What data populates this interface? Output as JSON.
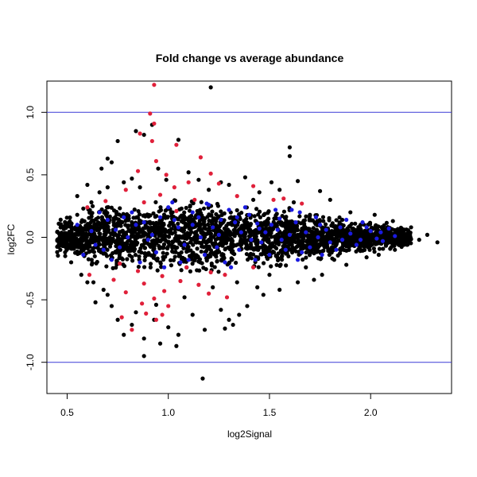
{
  "chart_data": {
    "type": "scatter",
    "title": "Fold change vs average abundance",
    "xlabel": "log2Signal",
    "ylabel": "log2FC",
    "xlim": [
      0.4,
      2.4
    ],
    "ylim": [
      -1.25,
      1.25
    ],
    "xticks": [
      0.5,
      1.0,
      1.5,
      2.0
    ],
    "xtick_labels": [
      "0.5",
      "1.0",
      "1.5",
      "2.0"
    ],
    "yticks": [
      -1.0,
      -0.5,
      0.0,
      0.5,
      1.0
    ],
    "ytick_labels": [
      "-1.0",
      "-0.5",
      "0.0",
      "0.5",
      "1.0"
    ],
    "grid": false,
    "hlines": [
      {
        "y": 1.0,
        "color": "#3a3ad6"
      },
      {
        "y": -1.0,
        "color": "#3a3ad6"
      }
    ],
    "series": [
      {
        "color": "#000000",
        "values": [
          [
            1.21,
            1.2
          ],
          [
            0.92,
            0.9
          ],
          [
            0.88,
            0.82
          ],
          [
            0.75,
            0.77
          ],
          [
            0.84,
            0.85
          ],
          [
            1.05,
            0.78
          ],
          [
            1.6,
            0.72
          ],
          [
            1.6,
            0.65
          ],
          [
            0.7,
            0.63
          ],
          [
            0.82,
            0.47
          ],
          [
            0.67,
            0.55
          ],
          [
            1.38,
            0.48
          ],
          [
            1.51,
            0.44
          ],
          [
            1.64,
            0.45
          ],
          [
            1.75,
            0.37
          ],
          [
            0.55,
            0.33
          ],
          [
            0.6,
            0.42
          ],
          [
            0.72,
            0.6
          ],
          [
            0.95,
            0.55
          ],
          [
            1.1,
            0.52
          ],
          [
            1.2,
            0.38
          ],
          [
            1.3,
            0.42
          ],
          [
            1.45,
            0.36
          ],
          [
            1.55,
            0.38
          ],
          [
            1.8,
            0.3
          ],
          [
            1.9,
            0.2
          ],
          [
            2.02,
            0.18
          ],
          [
            2.11,
            0.13
          ],
          [
            2.2,
            0.08
          ],
          [
            2.28,
            0.02
          ],
          [
            2.33,
            -0.04
          ],
          [
            2.18,
            -0.06
          ],
          [
            2.04,
            -0.14
          ],
          [
            1.88,
            -0.22
          ],
          [
            1.76,
            -0.3
          ],
          [
            1.72,
            -0.34
          ],
          [
            1.64,
            -0.36
          ],
          [
            1.55,
            -0.42
          ],
          [
            1.47,
            -0.46
          ],
          [
            1.39,
            -0.55
          ],
          [
            1.35,
            -0.62
          ],
          [
            1.32,
            -0.7
          ],
          [
            1.28,
            -0.73
          ],
          [
            1.18,
            -0.74
          ],
          [
            1.05,
            -0.78
          ],
          [
            1.0,
            -0.72
          ],
          [
            0.96,
            -0.85
          ],
          [
            1.04,
            -0.87
          ],
          [
            0.88,
            -0.95
          ],
          [
            0.88,
            -0.81
          ],
          [
            0.78,
            -0.78
          ],
          [
            0.75,
            -0.66
          ],
          [
            0.72,
            -0.55
          ],
          [
            0.68,
            -0.42
          ],
          [
            0.63,
            -0.36
          ],
          [
            0.57,
            -0.3
          ],
          [
            0.52,
            -0.2
          ],
          [
            0.49,
            -0.12
          ],
          [
            0.46,
            -0.05
          ],
          [
            0.46,
            0.03
          ],
          [
            0.48,
            0.08
          ],
          [
            0.51,
            0.12
          ],
          [
            0.55,
            0.18
          ],
          [
            0.58,
            0.23
          ],
          [
            0.62,
            0.28
          ],
          [
            0.66,
            0.36
          ],
          [
            0.7,
            0.4
          ],
          [
            0.78,
            0.44
          ],
          [
            0.86,
            0.4
          ],
          [
            0.99,
            0.46
          ],
          [
            1.15,
            0.46
          ],
          [
            1.26,
            0.44
          ],
          [
            1.42,
            0.3
          ],
          [
            1.62,
            0.28
          ],
          [
            1.7,
            0.18
          ],
          [
            1.86,
            0.14
          ],
          [
            1.95,
            0.1
          ],
          [
            2.06,
            0.06
          ],
          [
            2.14,
            0.02
          ],
          [
            2.24,
            -0.02
          ],
          [
            2.12,
            -0.1
          ],
          [
            1.98,
            -0.16
          ],
          [
            1.82,
            -0.18
          ],
          [
            1.68,
            -0.24
          ],
          [
            1.5,
            -0.3
          ],
          [
            1.34,
            -0.36
          ],
          [
            1.22,
            -0.4
          ],
          [
            1.08,
            -0.48
          ],
          [
            0.94,
            -0.54
          ],
          [
            0.84,
            -0.6
          ],
          [
            0.7,
            -0.46
          ],
          [
            0.6,
            -0.36
          ],
          [
            1.17,
            -1.13
          ],
          [
            0.64,
            -0.52
          ],
          [
            0.82,
            -0.7
          ],
          [
            1.12,
            -0.62
          ],
          [
            1.26,
            -0.58
          ],
          [
            1.44,
            -0.4
          ],
          [
            0.93,
            -0.66
          ],
          [
            1.3,
            -0.66
          ]
        ]
      },
      {
        "color": "#e0203a",
        "values": [
          [
            0.93,
            1.22
          ],
          [
            0.91,
            0.99
          ],
          [
            0.93,
            0.91
          ],
          [
            0.92,
            0.77
          ],
          [
            0.86,
            0.83
          ],
          [
            1.04,
            0.74
          ],
          [
            1.16,
            0.64
          ],
          [
            0.94,
            0.61
          ],
          [
            0.85,
            0.53
          ],
          [
            0.99,
            0.5
          ],
          [
            1.21,
            0.51
          ],
          [
            1.1,
            0.44
          ],
          [
            1.25,
            0.43
          ],
          [
            1.42,
            0.41
          ],
          [
            1.03,
            0.4
          ],
          [
            0.79,
            0.38
          ],
          [
            0.96,
            0.34
          ],
          [
            1.34,
            0.33
          ],
          [
            1.57,
            0.31
          ],
          [
            0.69,
            0.29
          ],
          [
            1.13,
            0.3
          ],
          [
            1.52,
            0.3
          ],
          [
            0.88,
            0.28
          ],
          [
            1.66,
            0.27
          ],
          [
            0.6,
            0.24
          ],
          [
            1.04,
            0.21
          ],
          [
            0.76,
            -0.21
          ],
          [
            1.09,
            -0.24
          ],
          [
            1.42,
            -0.24
          ],
          [
            0.85,
            -0.27
          ],
          [
            1.21,
            -0.28
          ],
          [
            0.61,
            -0.3
          ],
          [
            0.97,
            -0.31
          ],
          [
            1.28,
            -0.3
          ],
          [
            0.73,
            -0.34
          ],
          [
            1.06,
            -0.35
          ],
          [
            0.88,
            -0.37
          ],
          [
            1.15,
            -0.38
          ],
          [
            0.98,
            -0.43
          ],
          [
            0.79,
            -0.44
          ],
          [
            1.2,
            -0.45
          ],
          [
            1.29,
            -0.48
          ],
          [
            0.93,
            -0.49
          ],
          [
            0.87,
            -0.53
          ],
          [
            1.0,
            -0.55
          ],
          [
            0.89,
            -0.61
          ],
          [
            0.97,
            -0.62
          ],
          [
            0.77,
            -0.64
          ],
          [
            0.94,
            -0.66
          ],
          [
            0.82,
            -0.74
          ]
        ]
      },
      {
        "color": "#1a1adf",
        "values": [
          [
            0.55,
            0.1
          ],
          [
            0.62,
            0.05
          ],
          [
            0.7,
            0.14
          ],
          [
            0.76,
            -0.08
          ],
          [
            0.82,
            0.2
          ],
          [
            0.88,
            0.12
          ],
          [
            0.94,
            -0.12
          ],
          [
            1.0,
            0.24
          ],
          [
            1.05,
            0.08
          ],
          [
            1.1,
            -0.18
          ],
          [
            1.15,
            0.16
          ],
          [
            1.2,
            0.26
          ],
          [
            1.25,
            0.02
          ],
          [
            1.3,
            0.22
          ],
          [
            1.35,
            -0.1
          ],
          [
            1.4,
            0.18
          ],
          [
            1.45,
            0.07
          ],
          [
            1.5,
            -0.14
          ],
          [
            1.55,
            0.15
          ],
          [
            1.6,
            0.02
          ],
          [
            1.65,
            0.2
          ],
          [
            1.7,
            -0.08
          ],
          [
            1.75,
            0.1
          ],
          [
            1.8,
            -0.04
          ],
          [
            1.85,
            0.08
          ],
          [
            1.9,
            0.03
          ],
          [
            1.95,
            -0.02
          ],
          [
            2.0,
            0.05
          ],
          [
            2.05,
            0.04
          ],
          [
            2.12,
            0.01
          ],
          [
            0.58,
            -0.14
          ],
          [
            0.66,
            0.2
          ],
          [
            0.72,
            -0.18
          ],
          [
            0.8,
            0.0
          ],
          [
            0.86,
            -0.2
          ],
          [
            0.92,
            0.02
          ],
          [
            0.98,
            -0.24
          ],
          [
            1.03,
            0.14
          ],
          [
            1.08,
            -0.06
          ],
          [
            1.12,
            0.2
          ],
          [
            1.18,
            -0.14
          ],
          [
            1.22,
            0.08
          ],
          [
            1.28,
            -0.2
          ],
          [
            1.33,
            0.12
          ],
          [
            1.38,
            0.24
          ],
          [
            1.43,
            -0.18
          ],
          [
            1.48,
            0.04
          ],
          [
            1.53,
            0.22
          ],
          [
            1.58,
            -0.1
          ],
          [
            1.63,
            0.12
          ],
          [
            1.68,
            0.04
          ],
          [
            1.73,
            0.16
          ],
          [
            1.78,
            0.06
          ],
          [
            1.83,
            -0.1
          ],
          [
            1.88,
            0.14
          ],
          [
            1.93,
            -0.06
          ],
          [
            1.98,
            0.08
          ],
          [
            2.03,
            -0.01
          ],
          [
            2.09,
            0.07
          ],
          [
            0.64,
            -0.06
          ],
          [
            0.74,
            0.06
          ],
          [
            0.84,
            0.1
          ],
          [
            0.96,
            0.16
          ],
          [
            1.06,
            -0.2
          ],
          [
            1.16,
            0.0
          ],
          [
            1.26,
            0.14
          ],
          [
            1.36,
            0.04
          ],
          [
            1.46,
            -0.04
          ],
          [
            1.56,
            -0.02
          ],
          [
            1.66,
            -0.12
          ],
          [
            1.76,
            -0.14
          ],
          [
            1.86,
            -0.02
          ],
          [
            1.96,
            0.12
          ],
          [
            2.06,
            -0.03
          ],
          [
            1.02,
            0.28
          ],
          [
            1.19,
            0.27
          ],
          [
            1.31,
            -0.24
          ],
          [
            1.41,
            -0.02
          ],
          [
            1.51,
            0.1
          ],
          [
            1.61,
            0.22
          ],
          [
            0.9,
            -0.02
          ],
          [
            0.78,
            0.16
          ],
          [
            0.68,
            -0.1
          ],
          [
            1.12,
            0.1
          ],
          [
            1.24,
            -0.08
          ],
          [
            1.34,
            0.16
          ],
          [
            1.44,
            0.11
          ],
          [
            1.54,
            0.06
          ],
          [
            1.64,
            -0.18
          ],
          [
            1.74,
            0.0
          ]
        ]
      }
    ],
    "dense_cloud": {
      "color": "#000000",
      "bands": [
        {
          "x": [
            0.45,
            0.6
          ],
          "y": [
            -0.16,
            0.16
          ]
        },
        {
          "x": [
            0.6,
            0.9
          ],
          "y": [
            -0.25,
            0.25
          ]
        },
        {
          "x": [
            0.9,
            1.25
          ],
          "y": [
            -0.28,
            0.3
          ]
        },
        {
          "x": [
            1.25,
            1.6
          ],
          "y": [
            -0.24,
            0.24
          ]
        },
        {
          "x": [
            1.6,
            1.85
          ],
          "y": [
            -0.18,
            0.18
          ]
        },
        {
          "x": [
            1.85,
            2.1
          ],
          "y": [
            -0.12,
            0.12
          ]
        },
        {
          "x": [
            2.1,
            2.2
          ],
          "y": [
            -0.08,
            0.08
          ]
        }
      ]
    }
  }
}
